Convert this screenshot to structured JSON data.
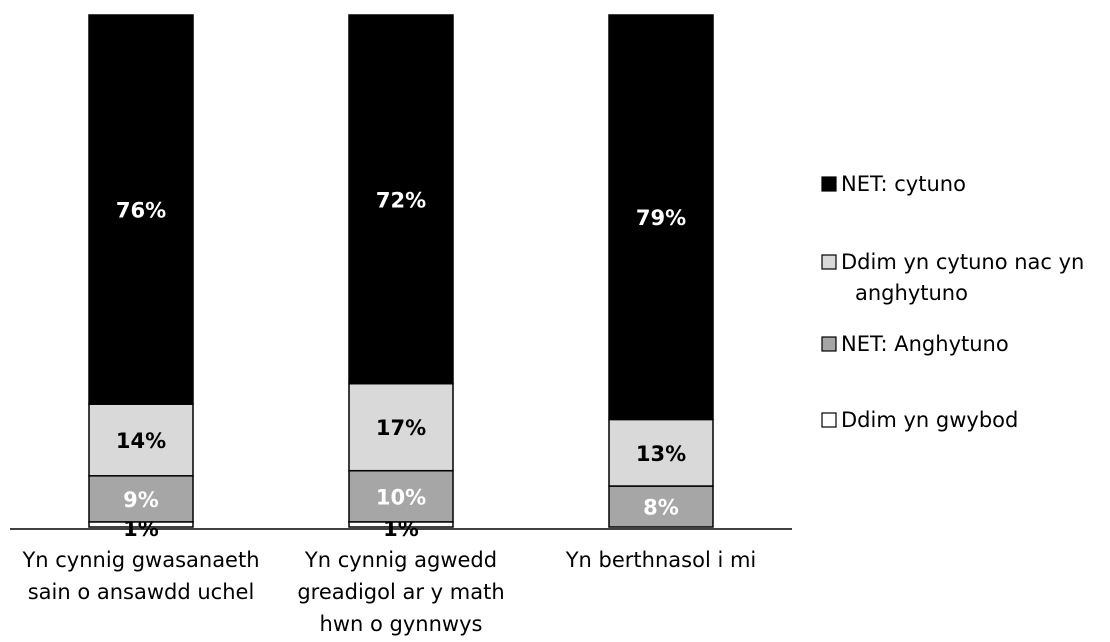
{
  "chart_data": {
    "type": "bar",
    "stacked": true,
    "orientation": "vertical",
    "ylim": [
      0,
      100
    ],
    "grid": false,
    "legend_position": "right",
    "categories": [
      "Yn cynnig gwasanaeth sain o ansawdd uchel",
      "Yn cynnig agwedd greadigol ar y math hwn o gynnwys",
      "Yn berthnasol i mi"
    ],
    "category_lines": [
      [
        "Yn cynnig gwasanaeth",
        "sain o ansawdd uchel"
      ],
      [
        "Yn cynnig agwedd",
        "greadigol ar y math",
        "hwn o gynnwys"
      ],
      [
        "Yn berthnasol i mi"
      ]
    ],
    "series": [
      {
        "name": "Ddim yn gwybod",
        "values": [
          1,
          1,
          0
        ],
        "labels": [
          "1%",
          "1%",
          ""
        ],
        "color": "#ffffff",
        "label_color": "#000000"
      },
      {
        "name": "NET: Anghytuno",
        "values": [
          9,
          10,
          8
        ],
        "labels": [
          "9%",
          "10%",
          "8%"
        ],
        "color": "#a6a6a6",
        "label_color": "#ffffff"
      },
      {
        "name": "Ddim yn cytuno nac yn anghytuno",
        "values": [
          14,
          17,
          13
        ],
        "labels": [
          "14%",
          "17%",
          "13%"
        ],
        "color": "#d9d9d9",
        "label_color": "#000000"
      },
      {
        "name": "NET: cytuno",
        "values": [
          76,
          72,
          79
        ],
        "labels": [
          "76%",
          "72%",
          "79%"
        ],
        "color": "#000000",
        "label_color": "#ffffff"
      }
    ],
    "legend": [
      {
        "lines": [
          "NET: cytuno"
        ],
        "color": "#000000"
      },
      {
        "lines": [
          "Ddim yn cytuno nac yn",
          "anghytuno"
        ],
        "color": "#d9d9d9"
      },
      {
        "lines": [
          "NET: Anghytuno"
        ],
        "color": "#a6a6a6"
      },
      {
        "lines": [
          "Ddim yn gwybod"
        ],
        "color": "#ffffff"
      }
    ]
  }
}
